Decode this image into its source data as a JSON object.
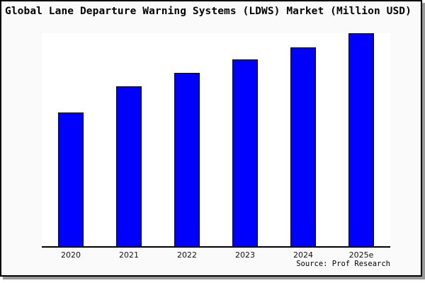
{
  "window": {
    "title": "Global Lane Departure Warning Systems (LDWS) Market (Million USD)"
  },
  "chart_data": {
    "type": "bar",
    "title": "Global Lane Departure Warning Systems (LDWS) Market (Million USD)",
    "categories": [
      "2020",
      "2021",
      "2022",
      "2023",
      "2024",
      "2025e"
    ],
    "values": [
      62.7,
      75.0,
      81.3,
      87.7,
      93.3,
      100.0
    ],
    "value_scale_note": "no y-axis or data labels shown; values are relative bar heights with 2025e = 100",
    "xlabel": "",
    "ylabel": "",
    "ylim": [
      0,
      101
    ],
    "grid": false,
    "legend": "none",
    "bar_color": "#0000ff",
    "bar_border_color": "#000000",
    "source_label": "Source: Prof Research"
  },
  "colors": {
    "outer_background": "#fafafa",
    "plot_background": "#ffffff",
    "frame_border": "#000000",
    "frame_shadow": "#999999",
    "axis_line": "#000000",
    "title_text": "#000000",
    "tick_text": "#111111"
  }
}
